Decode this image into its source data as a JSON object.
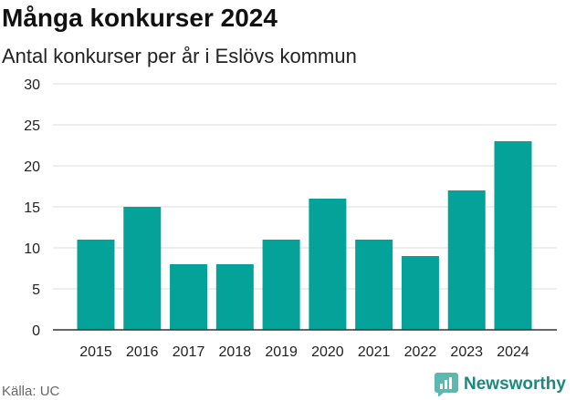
{
  "title": "Många konkurser 2024",
  "subtitle": "Antal konkurser per år i Eslövs kommun",
  "source": "Källa: UC",
  "brand": {
    "name": "Newsworthy",
    "icon": "newsworthy-logo-icon"
  },
  "colors": {
    "bar": "#05a299",
    "grid": "#dddddd",
    "axis": "#333333",
    "brand": "#1a8a80"
  },
  "chart_data": {
    "type": "bar",
    "categories": [
      "2015",
      "2016",
      "2017",
      "2018",
      "2019",
      "2020",
      "2021",
      "2022",
      "2023",
      "2024"
    ],
    "values": [
      11,
      15,
      8,
      8,
      11,
      16,
      11,
      9,
      17,
      23
    ],
    "ylim": [
      0,
      30
    ],
    "yticks": [
      0,
      5,
      10,
      15,
      20,
      25,
      30
    ],
    "xlabel": "",
    "ylabel": "",
    "grid": true
  }
}
